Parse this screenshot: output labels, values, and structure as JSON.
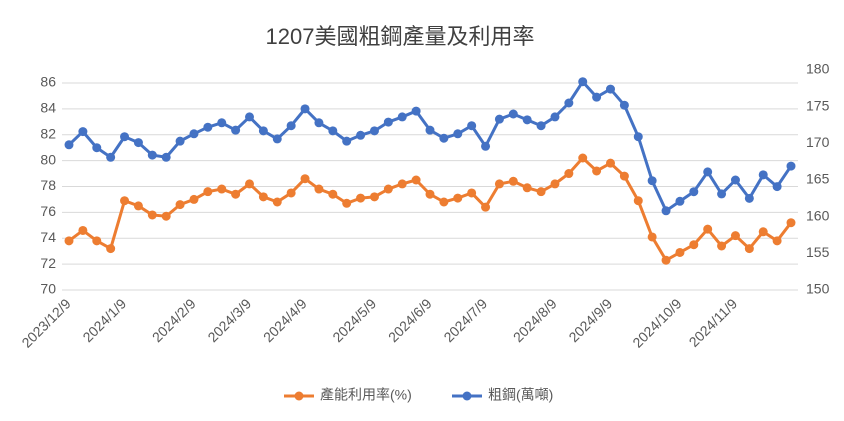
{
  "chart_data": {
    "type": "line",
    "title": "1207美國粗鋼產量及利用率",
    "categories": [
      "2023/12/9",
      null,
      null,
      null,
      "2024/1/9",
      null,
      null,
      null,
      null,
      "2024/2/9",
      null,
      null,
      null,
      "2024/3/9",
      null,
      null,
      null,
      "2024/4/9",
      null,
      null,
      null,
      null,
      "2024/5/9",
      null,
      null,
      null,
      "2024/6/9",
      null,
      null,
      null,
      "2024/7/9",
      null,
      null,
      null,
      null,
      "2024/8/9",
      null,
      null,
      null,
      "2024/9/9",
      null,
      null,
      null,
      null,
      "2024/10/9",
      null,
      null,
      null,
      "2024/11/9",
      null,
      null,
      null,
      null
    ],
    "series": [
      {
        "name": "產能利用率(%)",
        "color": "#ed7d31",
        "axis": "y",
        "values": [
          73.8,
          74.6,
          73.8,
          73.2,
          76.9,
          76.5,
          75.8,
          75.7,
          76.6,
          77.0,
          77.6,
          77.8,
          77.4,
          78.2,
          77.2,
          76.8,
          77.5,
          78.6,
          77.8,
          77.4,
          76.7,
          77.1,
          77.2,
          77.8,
          78.2,
          78.5,
          77.4,
          76.8,
          77.1,
          77.5,
          76.4,
          78.2,
          78.4,
          77.9,
          77.6,
          78.2,
          79.0,
          80.2,
          79.2,
          79.8,
          78.8,
          76.9,
          74.1,
          72.3,
          72.9,
          73.5,
          74.7,
          73.4,
          74.2,
          73.2,
          74.5,
          73.8,
          75.2
        ]
      },
      {
        "name": "粗鋼(萬噸)",
        "color": "#4472c4",
        "axis": "y2",
        "values": [
          169.8,
          171.6,
          169.4,
          168.1,
          170.9,
          170.1,
          168.4,
          168.1,
          170.3,
          171.3,
          172.2,
          172.8,
          171.8,
          173.6,
          171.7,
          170.6,
          172.4,
          174.7,
          172.8,
          171.7,
          170.3,
          171.1,
          171.7,
          172.9,
          173.6,
          174.4,
          171.8,
          170.7,
          171.3,
          172.4,
          169.6,
          173.3,
          174.0,
          173.2,
          172.4,
          173.6,
          175.5,
          178.4,
          176.3,
          177.4,
          175.2,
          170.9,
          164.9,
          160.8,
          162.1,
          163.4,
          166.1,
          163.1,
          165.0,
          162.5,
          165.7,
          164.1,
          166.9
        ]
      }
    ],
    "ylim": [
      70,
      87
    ],
    "yticks": [
      70,
      72,
      74,
      76,
      78,
      80,
      82,
      84,
      86
    ],
    "y2lim": [
      150,
      180
    ],
    "y2ticks": [
      150,
      155,
      160,
      165,
      170,
      175,
      180
    ],
    "grid": true,
    "legend": "bottom"
  }
}
